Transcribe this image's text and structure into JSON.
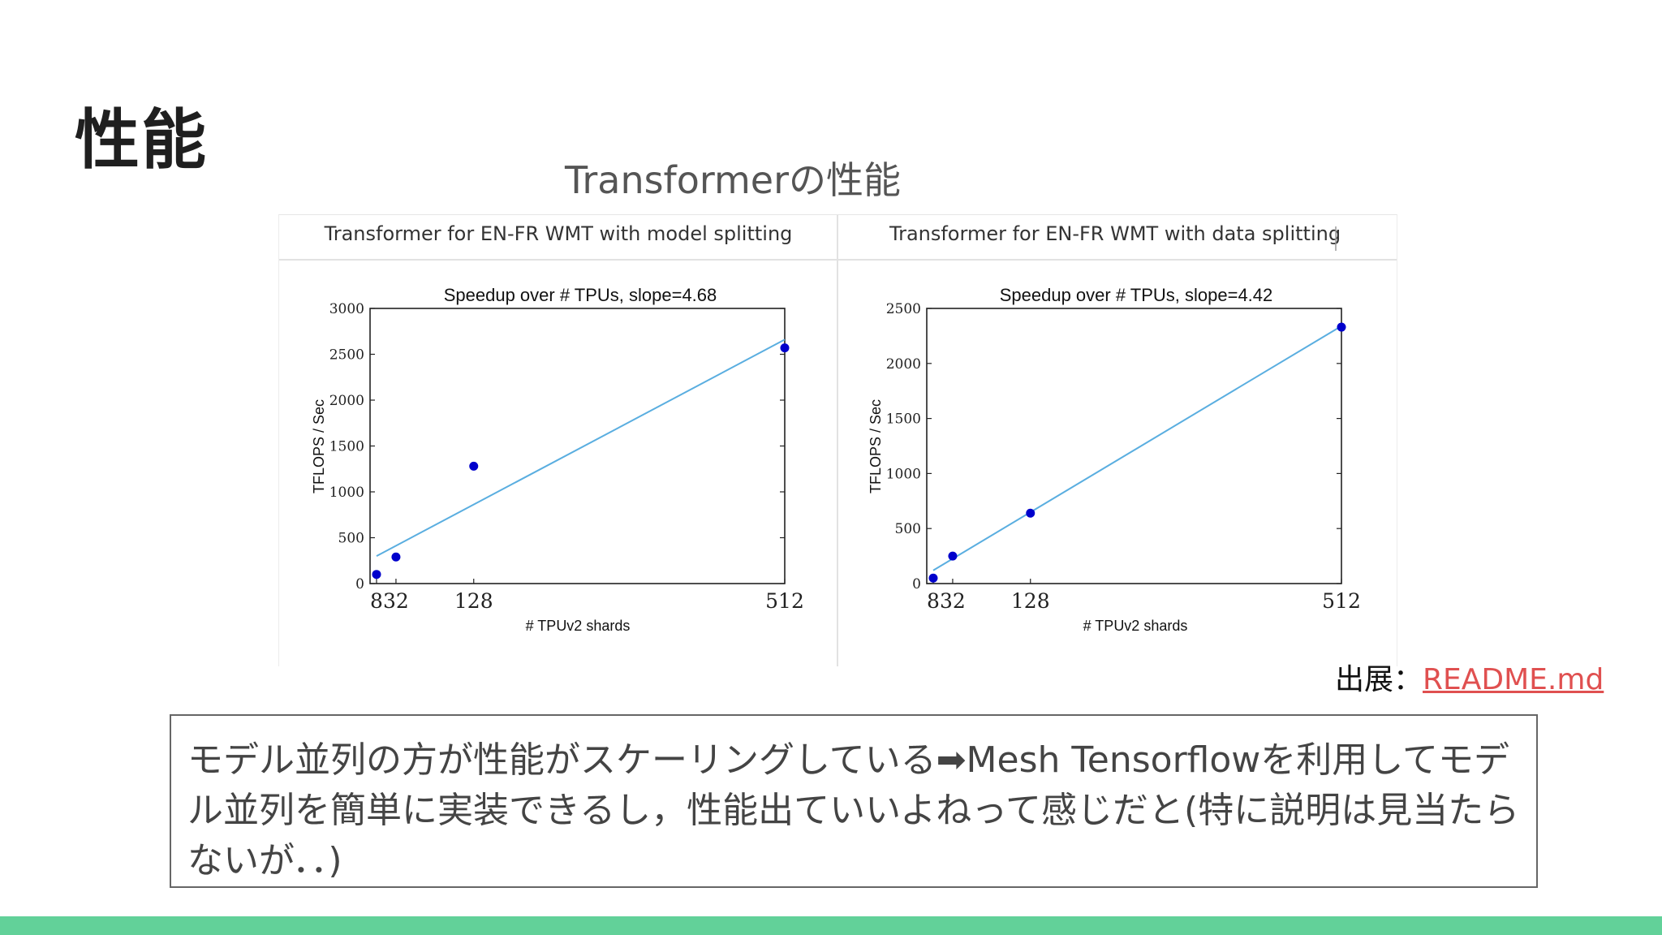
{
  "slide": {
    "title": "性能",
    "subtitle": "Transformerの性能",
    "source_label": "出展：",
    "source_link": "README.md",
    "note": "モデル並列の方が性能がスケーリングしている➡Mesh Tensorflowを利用してモデル並列を簡単に実装できるし，性能出ていいよねって感じだと(特に説明は見当たらないが．．)"
  },
  "colors": {
    "accent_bar": "#62d199",
    "point": "#0000cc",
    "fit_line": "#5aaee0",
    "link": "#e05050"
  },
  "chart_data": [
    {
      "panel_title": "Transformer for EN-FR WMT with model splitting",
      "type": "scatter",
      "title": "Speedup over # TPUs, slope=4.68",
      "xlabel": "# TPUv2 shards",
      "ylabel": "TFLOPS / Sec",
      "x_ticks": [
        "8",
        "32",
        "128",
        "512"
      ],
      "y_ticks": [
        "0",
        "500",
        "1000",
        "1500",
        "2000",
        "2500",
        "3000"
      ],
      "xlim": [
        0,
        512
      ],
      "ylim": [
        0,
        3000
      ],
      "points": [
        {
          "x": 8,
          "y": 100
        },
        {
          "x": 32,
          "y": 290
        },
        {
          "x": 128,
          "y": 1280
        },
        {
          "x": 512,
          "y": 2570
        }
      ],
      "fit_line": {
        "x": [
          8,
          512
        ],
        "y": [
          300,
          2660
        ],
        "slope": 4.68
      },
      "grid": false
    },
    {
      "panel_title": "Transformer for EN-FR WMT with data splitting",
      "type": "scatter",
      "title": "Speedup over # TPUs, slope=4.42",
      "xlabel": "# TPUv2 shards",
      "ylabel": "TFLOPS / Sec",
      "x_ticks": [
        "8",
        "32",
        "128",
        "512"
      ],
      "y_ticks": [
        "0",
        "500",
        "1000",
        "1500",
        "2000",
        "2500"
      ],
      "xlim": [
        0,
        512
      ],
      "ylim": [
        0,
        2500
      ],
      "points": [
        {
          "x": 8,
          "y": 50
        },
        {
          "x": 32,
          "y": 250
        },
        {
          "x": 128,
          "y": 640
        },
        {
          "x": 512,
          "y": 2330
        }
      ],
      "fit_line": {
        "x": [
          8,
          512
        ],
        "y": [
          120,
          2340
        ],
        "slope": 4.42
      },
      "grid": false
    }
  ]
}
